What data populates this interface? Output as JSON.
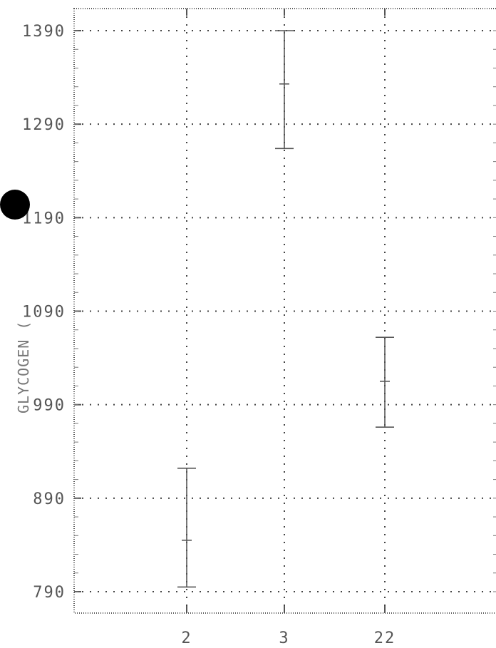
{
  "chart_data": {
    "type": "scatter",
    "title": "",
    "xlabel": "",
    "ylabel": "GLYCOGEN (",
    "categories": [
      "2",
      "3",
      "22"
    ],
    "ylim": [
      790,
      1390
    ],
    "yticks": [
      "790",
      "890",
      "990",
      "1090",
      "1190",
      "1290",
      "1390"
    ],
    "grid": true,
    "series": [
      {
        "points": [
          {
            "x": "2",
            "y": 845,
            "low": 795,
            "high": 922
          },
          {
            "x": "3",
            "y": 1333,
            "low": 1264,
            "high": 1390
          },
          {
            "x": "22",
            "y": 1015,
            "low": 966,
            "high": 1062
          }
        ]
      }
    ]
  },
  "colors": {
    "ink": "#555555",
    "background": "#ffffff",
    "marker": "#000000"
  }
}
